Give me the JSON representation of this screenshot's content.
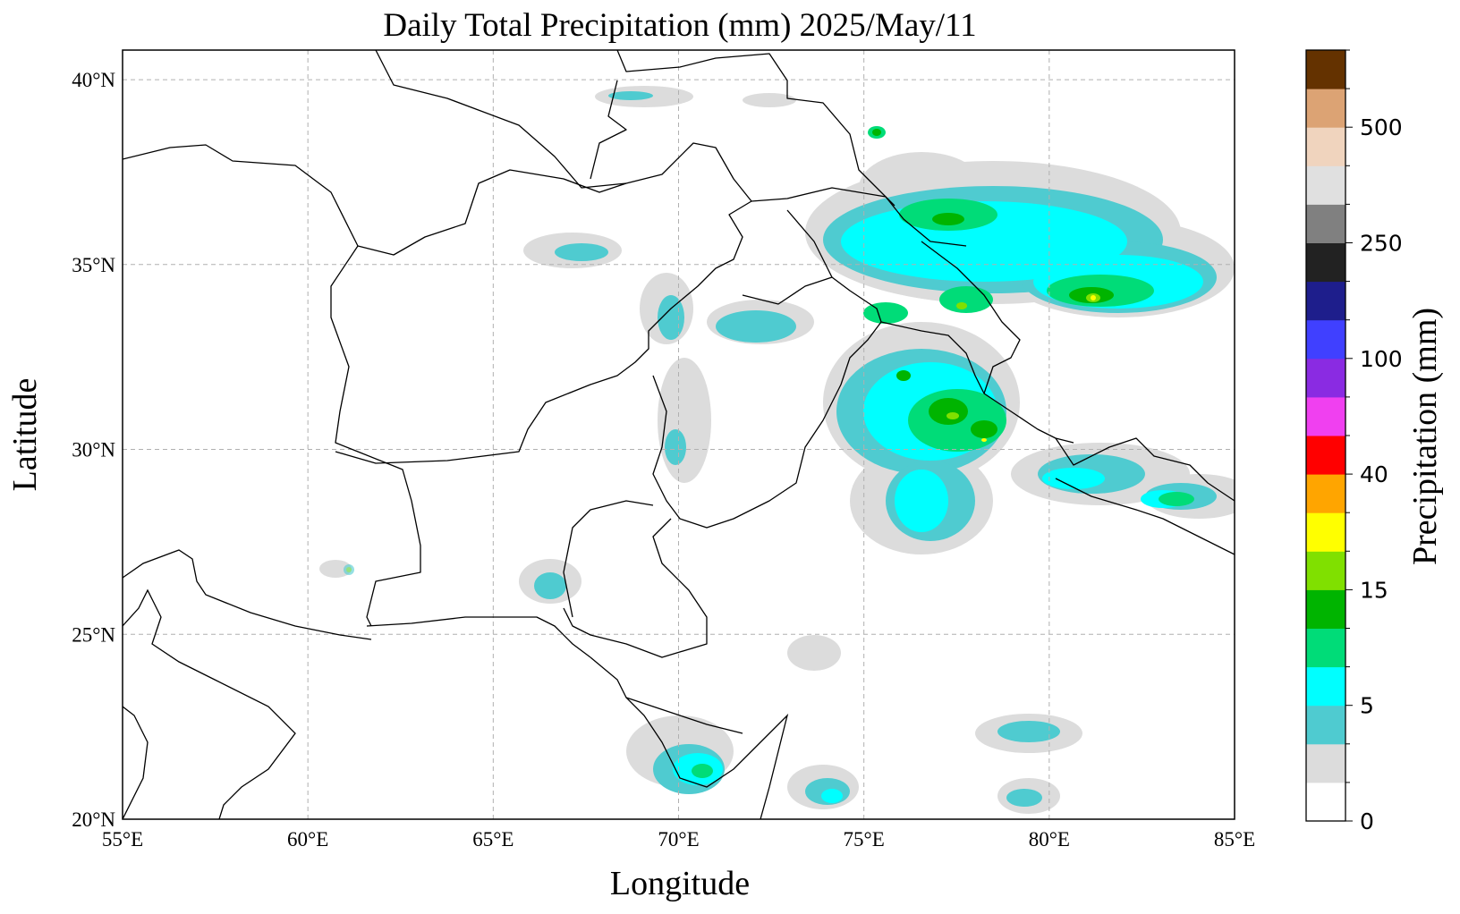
{
  "title": "Daily Total Precipitation (mm)  2025/May/11",
  "map": {
    "xlabel": "Longitude",
    "ylabel": "Latitude",
    "lon_range": [
      55,
      85
    ],
    "lat_range": [
      20,
      40.8
    ],
    "lon_ticks": [
      {
        "value": 55,
        "label": "55°E"
      },
      {
        "value": 60,
        "label": "60°E"
      },
      {
        "value": 65,
        "label": "65°E"
      },
      {
        "value": 70,
        "label": "70°E"
      },
      {
        "value": 75,
        "label": "75°E"
      },
      {
        "value": 80,
        "label": "80°E"
      },
      {
        "value": 85,
        "label": "85°E"
      }
    ],
    "lat_ticks": [
      {
        "value": 20,
        "label": "20°N"
      },
      {
        "value": 25,
        "label": "25°N"
      },
      {
        "value": 30,
        "label": "30°N"
      },
      {
        "value": 35,
        "label": "35°N"
      },
      {
        "value": 40,
        "label": "40°N"
      }
    ],
    "grid": true
  },
  "colorbar": {
    "label": "Precipitation (mm)",
    "colors": [
      "#ffffff",
      "#dcdcdc",
      "#4fcbd0",
      "#00ffff",
      "#00dc78",
      "#00b400",
      "#80e000",
      "#ffff00",
      "#ffa500",
      "#ff0000",
      "#f040f0",
      "#8a2be2",
      "#4040ff",
      "#1e1e8c",
      "#222222",
      "#808080",
      "#e0e0e0",
      "#f0d4be",
      "#dca374",
      "#643200"
    ],
    "tick_labels": [
      "0",
      "5",
      "15",
      "40",
      "100",
      "250",
      "500"
    ]
  }
}
